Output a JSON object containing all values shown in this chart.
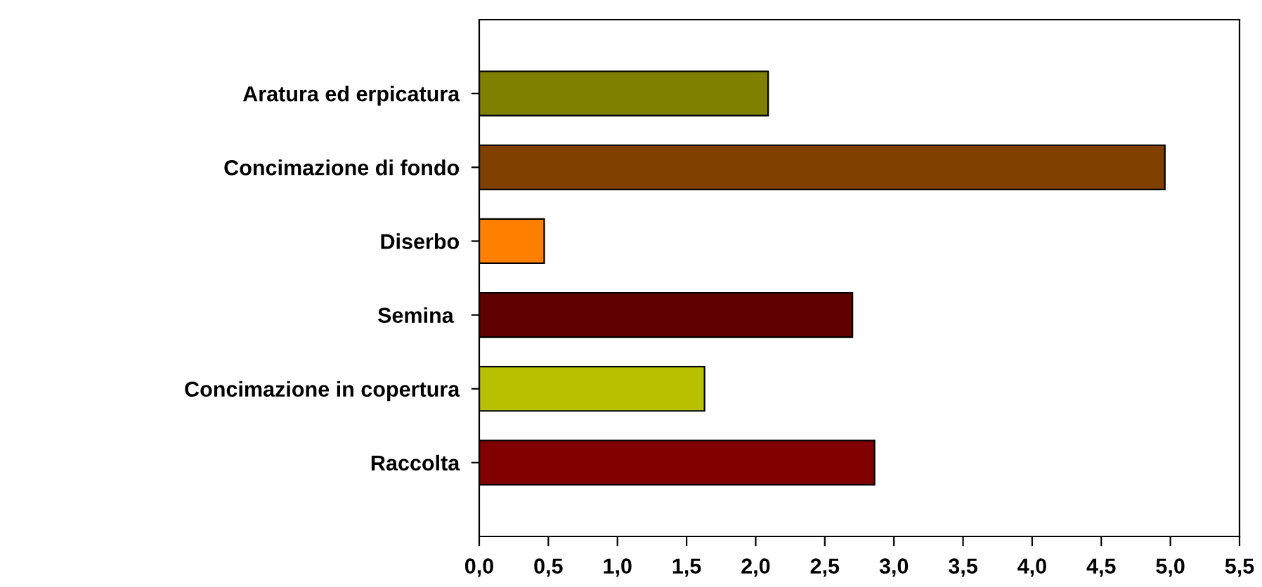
{
  "chart_data": {
    "type": "bar",
    "orientation": "horizontal",
    "categories": [
      "Aratura ed erpicatura",
      "Concimazione di fondo",
      "Diserbo",
      "Semina ",
      "Concimazione in copertura",
      "Raccolta"
    ],
    "values": [
      2.09,
      4.96,
      0.47,
      2.7,
      1.63,
      2.86
    ],
    "colors": [
      "#808000",
      "#804000",
      "#ff8000",
      "#600000",
      "#b8c000",
      "#800000"
    ],
    "xlim": [
      0,
      5.5
    ],
    "xticks": [
      {
        "value": 0,
        "label": "0,0"
      },
      {
        "value": 0.5,
        "label": "0,5"
      },
      {
        "value": 1,
        "label": "1,0"
      },
      {
        "value": 1.5,
        "label": "1,5"
      },
      {
        "value": 2,
        "label": "2,0"
      },
      {
        "value": 2.5,
        "label": "2,5"
      },
      {
        "value": 3,
        "label": "3,0"
      },
      {
        "value": 3.5,
        "label": "3,5"
      },
      {
        "value": 4,
        "label": "4,0"
      },
      {
        "value": 4.5,
        "label": "4,5"
      },
      {
        "value": 5,
        "label": "5,0"
      },
      {
        "value": 5.5,
        "label": "5,5"
      }
    ],
    "grid": false
  }
}
